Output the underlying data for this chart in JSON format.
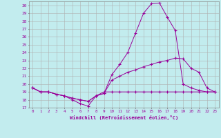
{
  "xlabel": "Windchill (Refroidissement éolien,°C)",
  "background_color": "#c2ecee",
  "line_color": "#990099",
  "grid_color": "#b0b0b0",
  "xlim": [
    -0.5,
    23.5
  ],
  "ylim": [
    17,
    30.5
  ],
  "yticks": [
    17,
    18,
    19,
    20,
    21,
    22,
    23,
    24,
    25,
    26,
    27,
    28,
    29,
    30
  ],
  "xticks": [
    0,
    1,
    2,
    3,
    4,
    5,
    6,
    7,
    8,
    9,
    10,
    11,
    12,
    13,
    14,
    15,
    16,
    17,
    18,
    19,
    20,
    21,
    22,
    23
  ],
  "line1_x": [
    0,
    1,
    2,
    3,
    4,
    5,
    6,
    7,
    8,
    9,
    10,
    11,
    12,
    13,
    14,
    15,
    16,
    17,
    18,
    19,
    20,
    21,
    22,
    23
  ],
  "line1_y": [
    19.5,
    19.0,
    19.0,
    18.7,
    18.5,
    18.0,
    17.5,
    17.2,
    18.5,
    19.0,
    19.0,
    19.0,
    19.0,
    19.0,
    19.0,
    19.0,
    19.0,
    19.0,
    19.0,
    19.0,
    19.0,
    19.0,
    19.0,
    19.0
  ],
  "line2_x": [
    0,
    1,
    2,
    3,
    4,
    5,
    6,
    7,
    8,
    9,
    10,
    11,
    12,
    13,
    14,
    15,
    16,
    17,
    18,
    19,
    20,
    21,
    22,
    23
  ],
  "line2_y": [
    19.5,
    19.0,
    19.0,
    18.7,
    18.5,
    18.2,
    18.0,
    17.8,
    18.5,
    18.8,
    21.2,
    22.5,
    24.0,
    26.5,
    29.0,
    30.2,
    30.3,
    28.5,
    26.8,
    20.0,
    19.5,
    19.2,
    19.0,
    19.0
  ],
  "line3_x": [
    0,
    1,
    2,
    3,
    4,
    5,
    6,
    7,
    8,
    9,
    10,
    11,
    12,
    13,
    14,
    15,
    16,
    17,
    18,
    19,
    20,
    21,
    22,
    23
  ],
  "line3_y": [
    19.5,
    19.0,
    19.0,
    18.7,
    18.5,
    18.2,
    18.0,
    17.8,
    18.5,
    18.8,
    20.5,
    21.0,
    21.5,
    21.8,
    22.2,
    22.5,
    22.8,
    23.0,
    23.3,
    23.2,
    22.0,
    21.5,
    19.5,
    19.0
  ]
}
